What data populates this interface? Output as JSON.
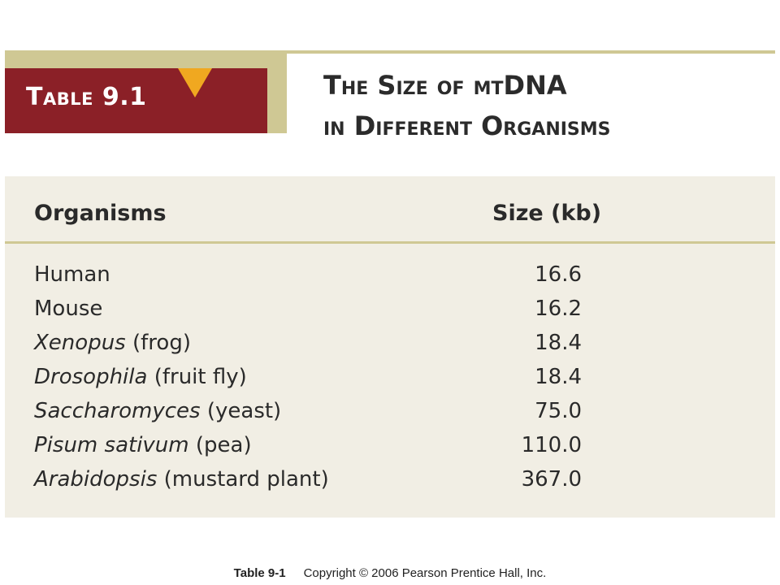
{
  "header": {
    "table_label": "Table 9.1",
    "title_line1": "The Size of mtDNA",
    "title_line2": "in Different Organisms"
  },
  "table": {
    "columns": [
      "Organisms",
      "Size (kb)"
    ],
    "rows": [
      {
        "name_italic": "",
        "name_plain": "Human",
        "size": "16.6"
      },
      {
        "name_italic": "",
        "name_plain": "Mouse",
        "size": "16.2"
      },
      {
        "name_italic": "Xenopus",
        "name_plain": " (frog)",
        "size": "18.4"
      },
      {
        "name_italic": "Drosophila",
        "name_plain": " (fruit fly)",
        "size": "18.4"
      },
      {
        "name_italic": "Saccharomyces",
        "name_plain": " (yeast)",
        "size": "75.0"
      },
      {
        "name_italic": "Pisum sativum",
        "name_plain": " (pea)",
        "size": "110.0"
      },
      {
        "name_italic": "Arabidopsis",
        "name_plain": " (mustard plant)",
        "size": "367.0"
      }
    ]
  },
  "caption": {
    "label": "Table 9-1",
    "text": "Copyright © 2006 Pearson Prentice Hall, Inc."
  },
  "colors": {
    "accent_red": "#8b2027",
    "accent_tan": "#cfc894",
    "flag_orange": "#f0a820",
    "panel_bg": "#f1eee4"
  }
}
